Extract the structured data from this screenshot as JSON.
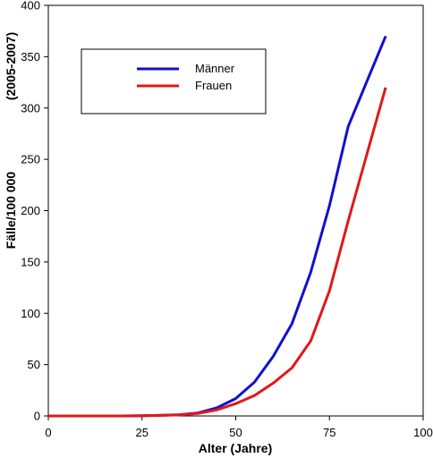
{
  "chart_data": {
    "type": "line",
    "title": "",
    "xlabel": "Alter (Jahre)",
    "ylabel_lines": [
      "Fälle/100 000",
      "(2005-2007)"
    ],
    "xlim": [
      0,
      100
    ],
    "ylim": [
      0,
      400
    ],
    "xticks": [
      0,
      25,
      50,
      75,
      100
    ],
    "yticks": [
      0,
      50,
      100,
      150,
      200,
      250,
      300,
      350,
      400
    ],
    "grid": false,
    "legend_position": "top-left",
    "series": [
      {
        "name": "Männer",
        "color": "#1010d0",
        "x": [
          0,
          5,
          10,
          15,
          20,
          25,
          30,
          35,
          40,
          45,
          50,
          55,
          60,
          65,
          70,
          75,
          80,
          85,
          90
        ],
        "y": [
          0,
          0,
          0,
          0,
          0,
          0.3,
          0.6,
          1.2,
          3,
          8,
          17,
          33,
          58,
          90,
          140,
          205,
          282,
          326,
          370
        ]
      },
      {
        "name": "Frauen",
        "color": "#e01818",
        "x": [
          0,
          5,
          10,
          15,
          20,
          25,
          30,
          35,
          40,
          45,
          50,
          55,
          60,
          65,
          70,
          75,
          80,
          85,
          90
        ],
        "y": [
          0,
          0,
          0,
          0,
          0,
          0.3,
          0.5,
          1,
          2.5,
          6,
          12,
          20,
          32,
          47,
          73,
          122,
          190,
          255,
          320
        ]
      }
    ]
  }
}
